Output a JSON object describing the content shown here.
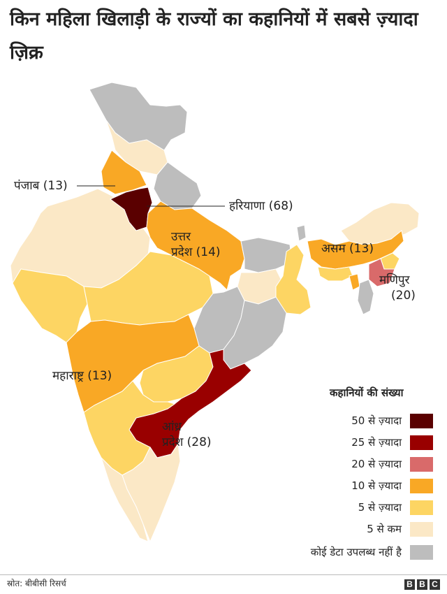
{
  "title": "किन महिला खिलाड़ी के राज्यों का कहानियों में सबसे ज़्यादा ज़िक्र",
  "labels": {
    "punjab": "पंजाब (13)",
    "haryana": "हरियाणा (68)",
    "up_line1": "उत्तर",
    "up_line2": "प्रदेश (14)",
    "assam": "असम (13)",
    "manipur_line1": "मणिपुर",
    "manipur_line2": "(20)",
    "maharashtra": "महाराष्ट्र (13)",
    "andhra_line1": "आंध्र",
    "andhra_line2": "प्रदेश (28)"
  },
  "legend": {
    "title": "कहानियों की संख्या",
    "items": [
      {
        "label": "50 से ज़्यादा",
        "color": "#5a0000"
      },
      {
        "label": "25 से ज़्यादा",
        "color": "#990000"
      },
      {
        "label": "20 से ज़्यादा",
        "color": "#d96a6a"
      },
      {
        "label": "10 से ज़्यादा",
        "color": "#f9a825"
      },
      {
        "label": "5 से ज़्यादा",
        "color": "#fdd563"
      },
      {
        "label": "5 से कम",
        "color": "#fbe8c6"
      },
      {
        "label": "कोई डेटा उपलब्ध नहीं है",
        "color": "#bdbdbd"
      }
    ]
  },
  "source": "स्रोत: बीबीसी रिसर्च",
  "brand": [
    "B",
    "B",
    "C"
  ]
}
